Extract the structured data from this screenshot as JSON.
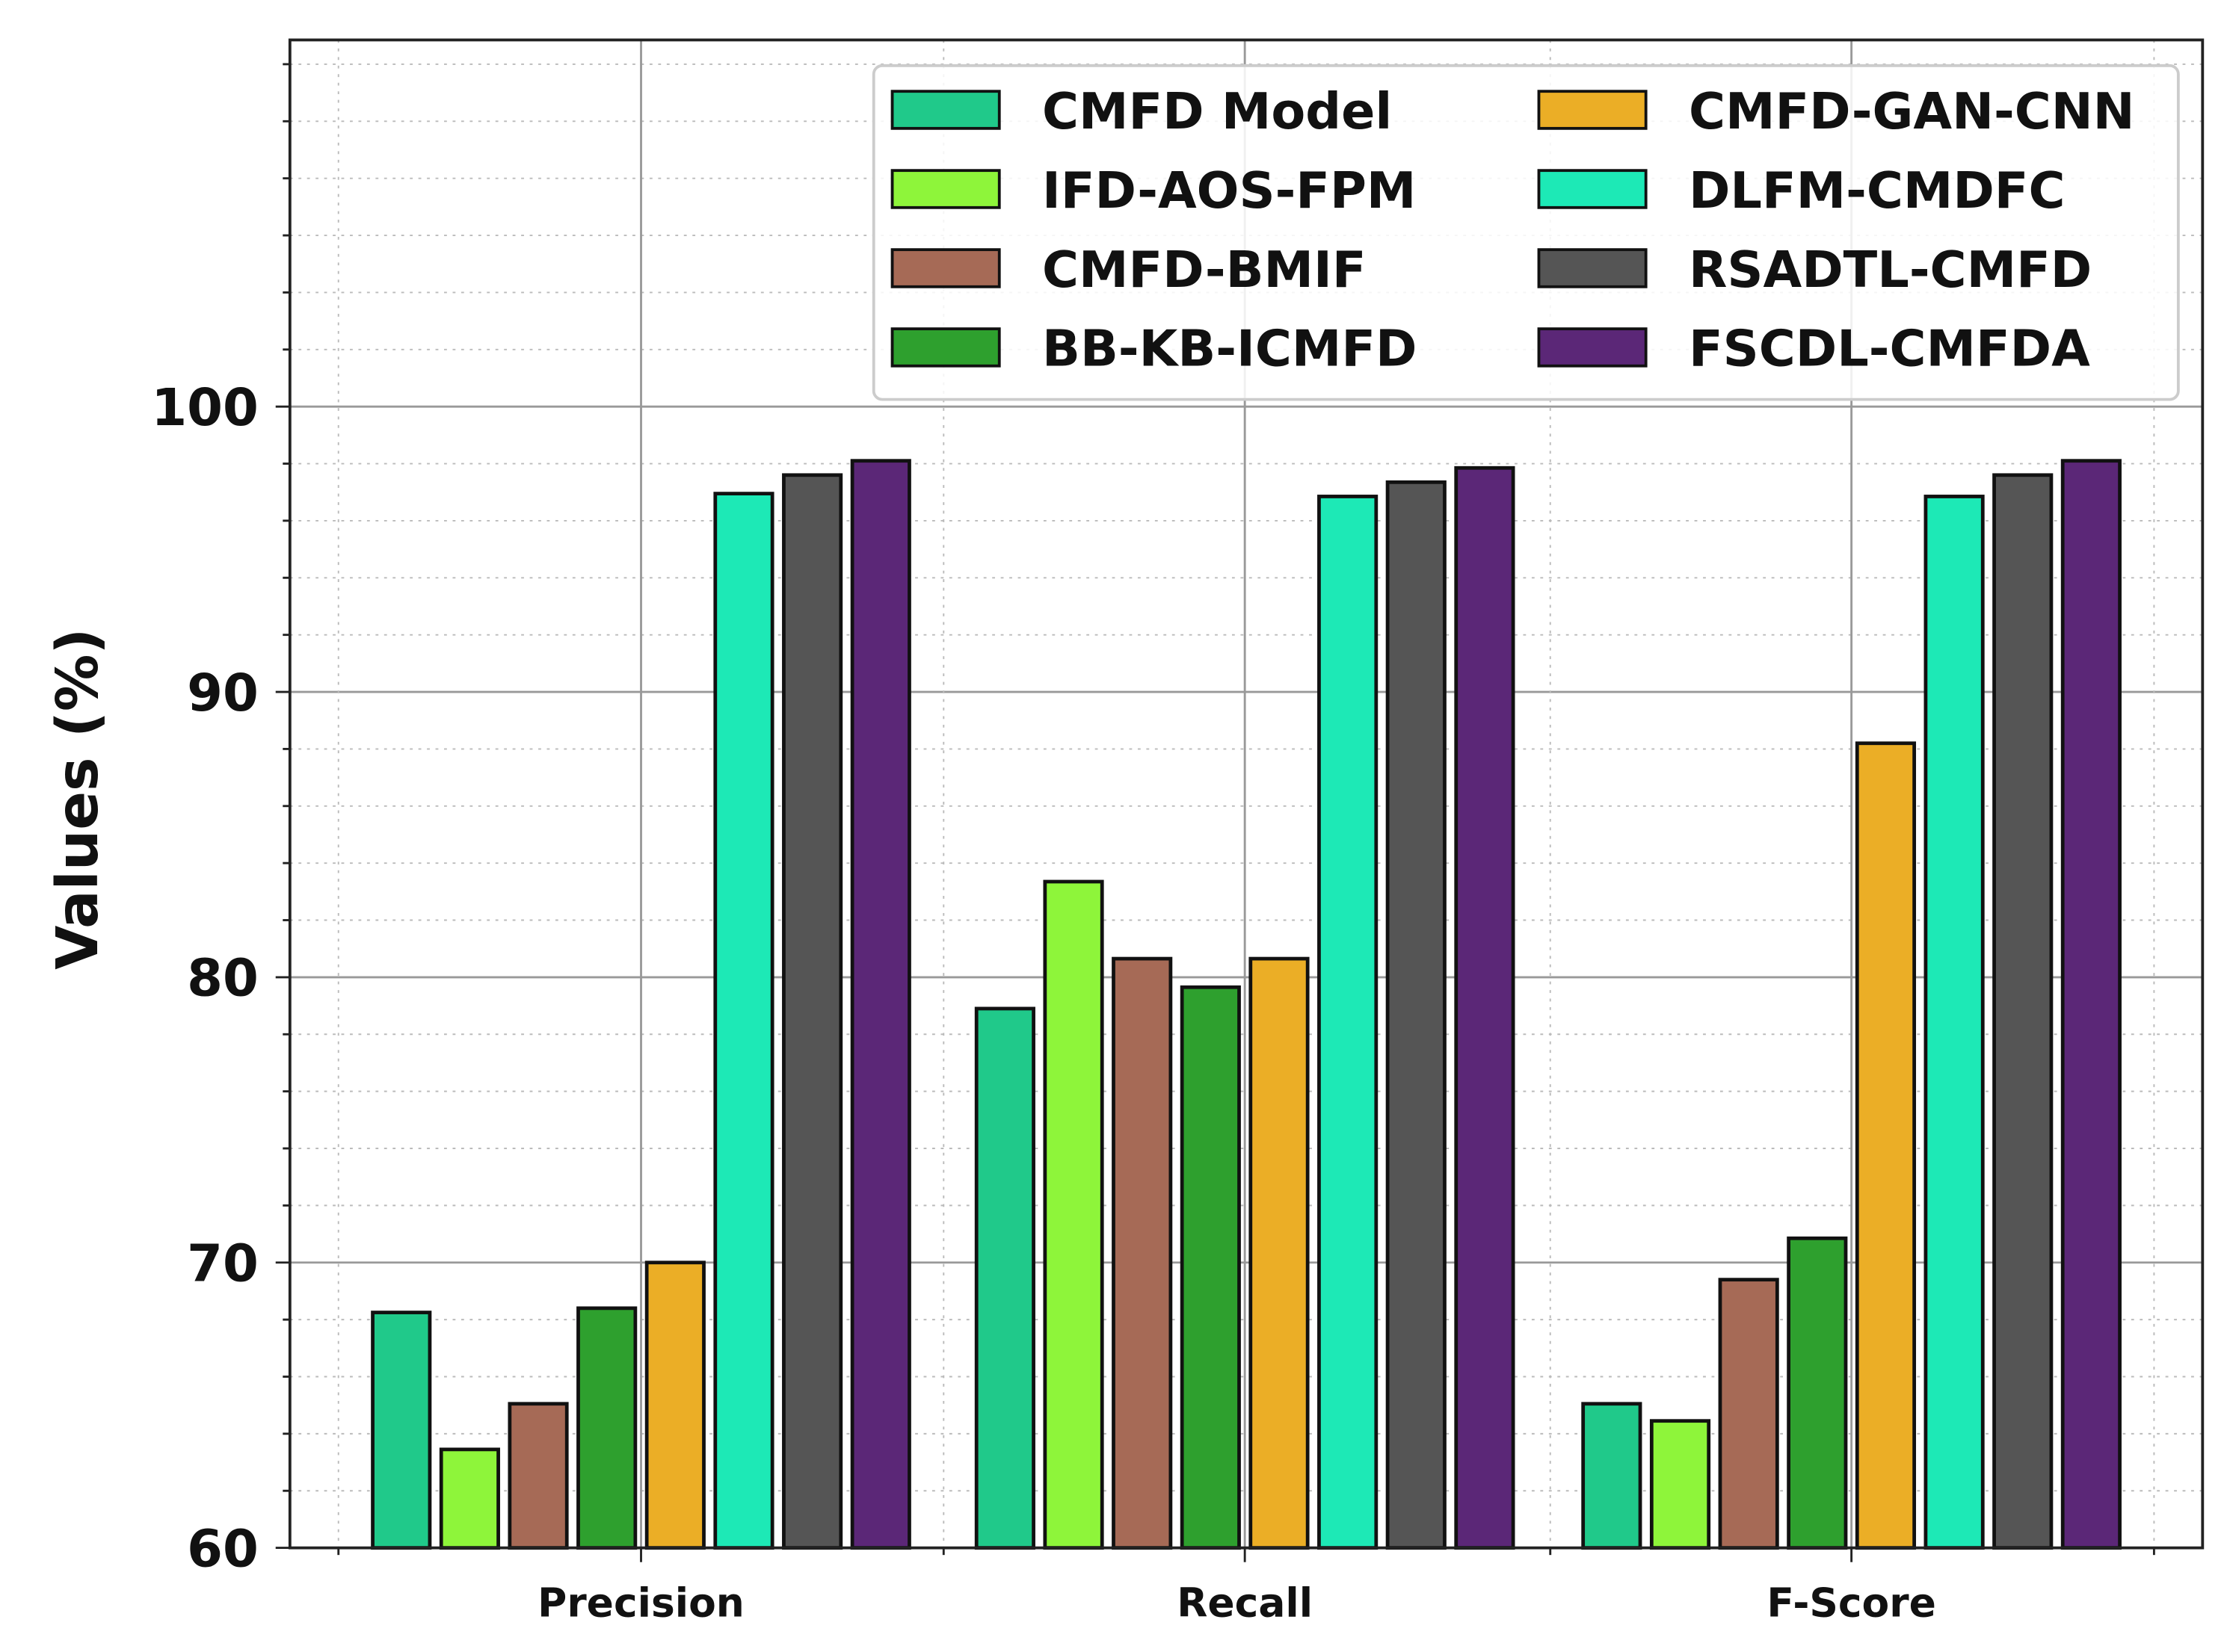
{
  "chart_data": {
    "type": "bar",
    "title": "",
    "xlabel": "",
    "ylabel": "Values (%)",
    "ylim": [
      60,
      112.85
    ],
    "yticks": [
      60,
      70,
      80,
      90,
      100
    ],
    "grid": true,
    "legend_position": "top-right",
    "categories": [
      "Precision",
      "Recall",
      "F-Score"
    ],
    "series": [
      {
        "name": "CMFD Model",
        "color": "#20c98a",
        "values": [
          68.25,
          78.9,
          65.05
        ]
      },
      {
        "name": "IFD-AOS-FPM",
        "color": "#8ef53a",
        "values": [
          63.45,
          83.35,
          64.45
        ]
      },
      {
        "name": "CMFD-BMIF",
        "color": "#a66a56",
        "values": [
          65.05,
          80.65,
          69.4
        ]
      },
      {
        "name": "BB-KB-ICMFD",
        "color": "#2ea02e",
        "values": [
          68.4,
          79.65,
          70.85
        ]
      },
      {
        "name": "CMFD-GAN-CNN",
        "color": "#ebae26",
        "values": [
          70.0,
          80.65,
          88.2
        ]
      },
      {
        "name": "DLFM-CMDFC",
        "color": "#1de9b6",
        "values": [
          96.95,
          96.85,
          96.85
        ]
      },
      {
        "name": "RSADTL-CMFD",
        "color": "#555555",
        "values": [
          97.6,
          97.35,
          97.6
        ]
      },
      {
        "name": "FSCDL-CMFDA",
        "color": "#5b2777",
        "values": [
          98.1,
          97.85,
          98.1
        ]
      }
    ]
  }
}
